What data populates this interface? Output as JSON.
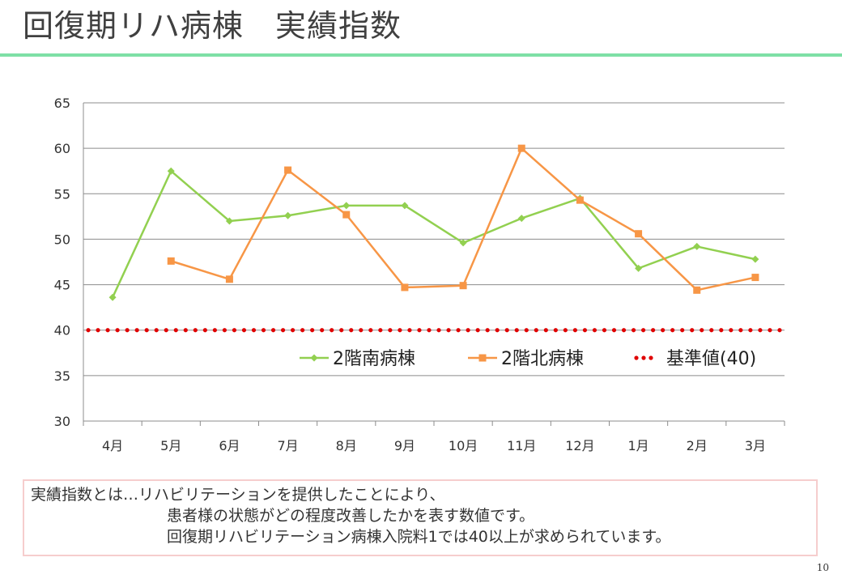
{
  "page": {
    "title": "回復期リハ病棟　実績指数",
    "page_number": "10"
  },
  "colors": {
    "title_rule": "#7ee0a6",
    "note_border": "#f6cdcd"
  },
  "note": {
    "line1": "実績指数とは…リハビリテーションを提供したことにより、",
    "line2": "患者様の状態がどの程度改善したかを表す数値です。",
    "line3": "回復期リハビリテーション病棟入院料1では40以上が求められています。"
  },
  "chart_data": {
    "type": "line",
    "categories": [
      "4月",
      "5月",
      "6月",
      "7月",
      "8月",
      "9月",
      "10月",
      "11月",
      "12月",
      "1月",
      "2月",
      "3月"
    ],
    "ylim": [
      30,
      65
    ],
    "yticks": [
      30,
      35,
      40,
      45,
      50,
      55,
      60,
      65
    ],
    "grid": true,
    "legend_position": "inside-lower-right",
    "series": [
      {
        "name": "2階南病棟",
        "color": "#92d050",
        "marker": "diamond",
        "line": "solid",
        "values": [
          43.6,
          57.5,
          52.0,
          52.6,
          53.7,
          53.7,
          49.6,
          52.3,
          54.5,
          46.8,
          49.2,
          47.8
        ]
      },
      {
        "name": "2階北病棟",
        "color": "#f79646",
        "marker": "square",
        "line": "solid",
        "values": [
          null,
          47.6,
          45.6,
          57.6,
          52.7,
          44.7,
          44.9,
          60.0,
          54.3,
          50.6,
          44.4,
          45.8
        ]
      },
      {
        "name": "基準値(40)",
        "color": "#e00000",
        "marker": "none",
        "line": "dotted",
        "values": [
          40,
          40,
          40,
          40,
          40,
          40,
          40,
          40,
          40,
          40,
          40,
          40
        ]
      }
    ]
  }
}
